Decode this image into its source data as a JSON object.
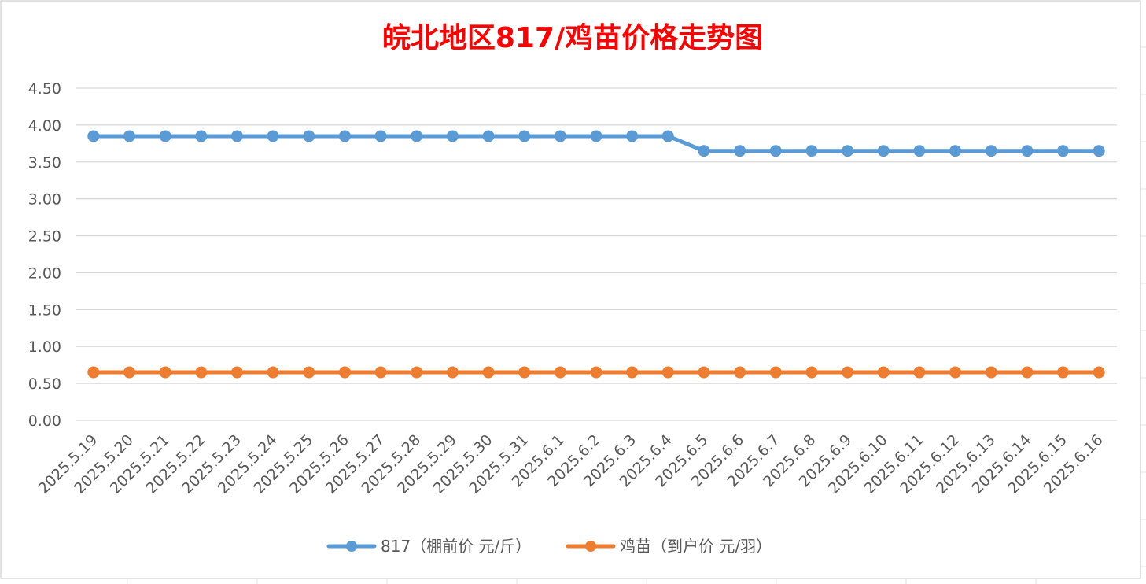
{
  "chart_data": {
    "type": "line",
    "title": "皖北地区817/鸡苗价格走势图",
    "xlabel": "",
    "ylabel": "",
    "ylim": [
      0,
      4.5
    ],
    "ytick_step": 0.5,
    "ytick_labels": [
      "0.00",
      "0.50",
      "1.00",
      "1.50",
      "2.00",
      "2.50",
      "3.00",
      "3.50",
      "4.00",
      "4.50"
    ],
    "grid": true,
    "legend_position": "bottom",
    "categories": [
      "2025.5.19",
      "2025.5.20",
      "2025.5.21",
      "2025.5.22",
      "2025.5.23",
      "2025.5.24",
      "2025.5.25",
      "2025.5.26",
      "2025.5.27",
      "2025.5.28",
      "2025.5.29",
      "2025.5.30",
      "2025.5.31",
      "2025.6.1",
      "2025.6.2",
      "2025.6.3",
      "2025.6.4",
      "2025.6.5",
      "2025.6.6",
      "2025.6.7",
      "2025.6.8",
      "2025.6.9",
      "2025.6.10",
      "2025.6.11",
      "2025.6.12",
      "2025.6.13",
      "2025.6.14",
      "2025.6.15",
      "2025.6.16"
    ],
    "series": [
      {
        "name": "817（棚前价 元/斤）",
        "color": "#5b9bd5",
        "values": [
          3.85,
          3.85,
          3.85,
          3.85,
          3.85,
          3.85,
          3.85,
          3.85,
          3.85,
          3.85,
          3.85,
          3.85,
          3.85,
          3.85,
          3.85,
          3.85,
          3.85,
          3.65,
          3.65,
          3.65,
          3.65,
          3.65,
          3.65,
          3.65,
          3.65,
          3.65,
          3.65,
          3.65,
          3.65
        ]
      },
      {
        "name": "鸡苗（到户价 元/羽）",
        "color": "#ed7d31",
        "values": [
          0.65,
          0.65,
          0.65,
          0.65,
          0.65,
          0.65,
          0.65,
          0.65,
          0.65,
          0.65,
          0.65,
          0.65,
          0.65,
          0.65,
          0.65,
          0.65,
          0.65,
          0.65,
          0.65,
          0.65,
          0.65,
          0.65,
          0.65,
          0.65,
          0.65,
          0.65,
          0.65,
          0.65,
          0.65
        ]
      }
    ]
  }
}
